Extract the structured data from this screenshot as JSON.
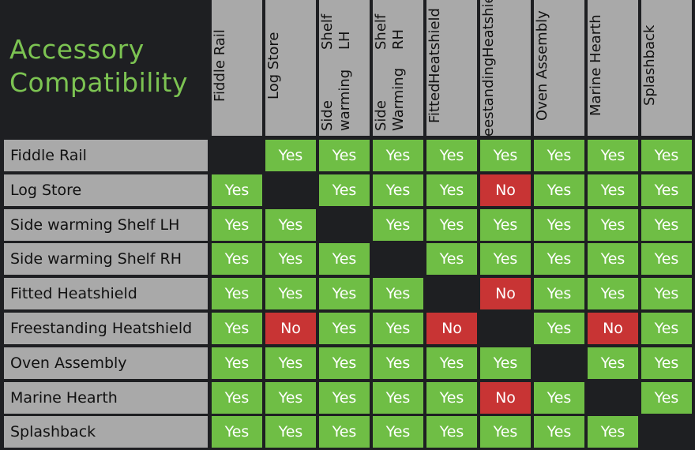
{
  "title": [
    "Accessory",
    "Compatibility"
  ],
  "columns": [
    [
      "Fiddle Rail"
    ],
    [
      "Log Store"
    ],
    [
      "Side warming",
      "Shelf LH"
    ],
    [
      "Side Warming",
      "Shelf RH"
    ],
    [
      "Fitted",
      "Heatshield"
    ],
    [
      "Freestanding",
      "Heatshield"
    ],
    [
      "Oven Assembly"
    ],
    [
      "Marine Hearth"
    ],
    [
      "Splashback"
    ]
  ],
  "rows": [
    {
      "label": "Fiddle Rail",
      "cells": [
        "",
        "Yes",
        "Yes",
        "Yes",
        "Yes",
        "Yes",
        "Yes",
        "Yes",
        "Yes"
      ]
    },
    {
      "label": "Log Store",
      "cells": [
        "Yes",
        "",
        "Yes",
        "Yes",
        "Yes",
        "No",
        "Yes",
        "Yes",
        "Yes"
      ]
    },
    {
      "label": "Side warming Shelf LH",
      "cells": [
        "Yes",
        "Yes",
        "",
        "Yes",
        "Yes",
        "Yes",
        "Yes",
        "Yes",
        "Yes"
      ]
    },
    {
      "label": "Side warming Shelf RH",
      "cells": [
        "Yes",
        "Yes",
        "Yes",
        "",
        "Yes",
        "Yes",
        "Yes",
        "Yes",
        "Yes"
      ]
    },
    {
      "label": "Fitted Heatshield",
      "cells": [
        "Yes",
        "Yes",
        "Yes",
        "Yes",
        "",
        "No",
        "Yes",
        "Yes",
        "Yes"
      ]
    },
    {
      "label": "Freestanding Heatshield",
      "cells": [
        "Yes",
        "No",
        "Yes",
        "Yes",
        "No",
        "",
        "Yes",
        "No",
        "Yes"
      ]
    },
    {
      "label": "Oven Assembly",
      "cells": [
        "Yes",
        "Yes",
        "Yes",
        "Yes",
        "Yes",
        "Yes",
        "",
        "Yes",
        "Yes"
      ]
    },
    {
      "label": "Marine Hearth",
      "cells": [
        "Yes",
        "Yes",
        "Yes",
        "Yes",
        "Yes",
        "No",
        "Yes",
        "",
        "Yes"
      ]
    },
    {
      "label": "Splashback",
      "cells": [
        "Yes",
        "Yes",
        "Yes",
        "Yes",
        "Yes",
        "Yes",
        "Yes",
        "Yes",
        ""
      ]
    }
  ],
  "colors": {
    "yes": "#6fbe45",
    "no": "#c83434",
    "header": "#a9a9a9",
    "title": "#7cc352",
    "background": "#1e1f22"
  }
}
